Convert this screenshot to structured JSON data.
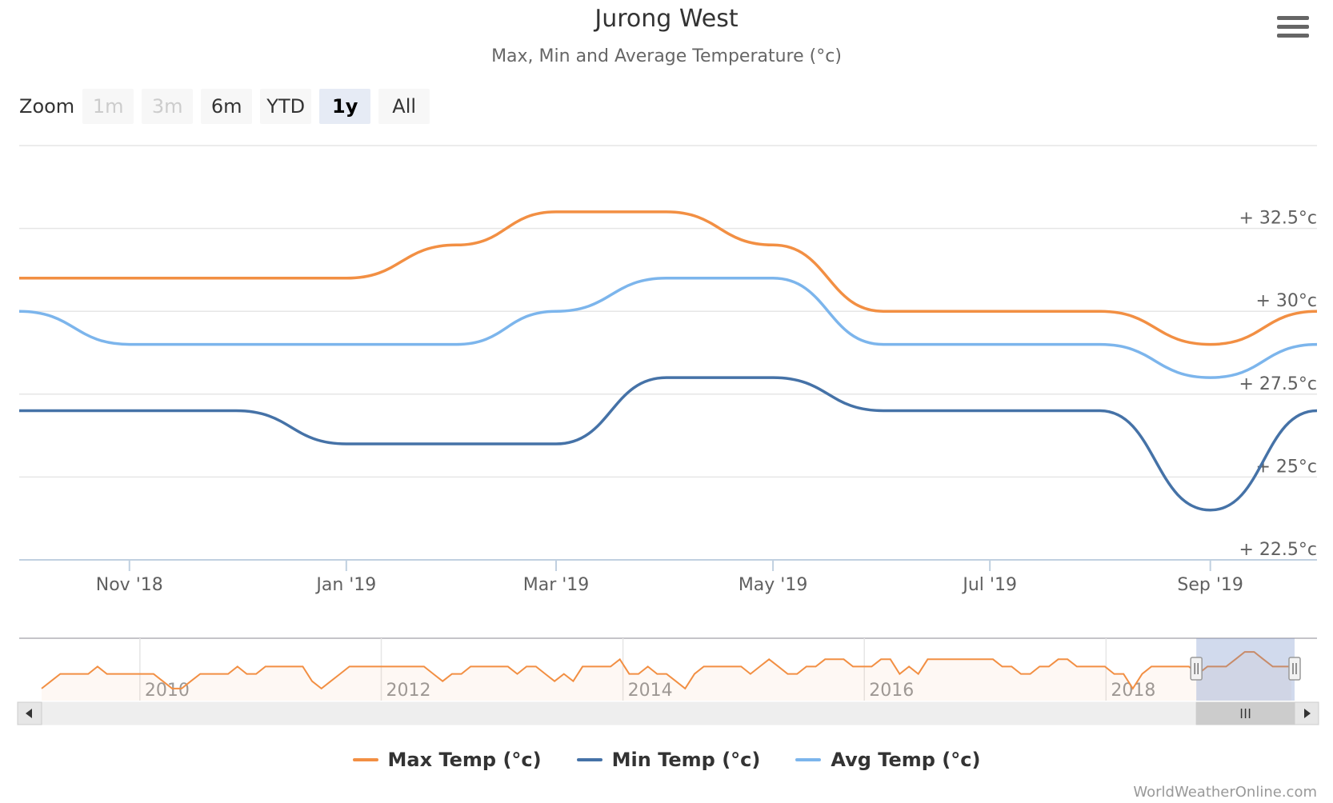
{
  "header": {
    "title": "Jurong West",
    "subtitle": "Max, Min and Average Temperature (°c)",
    "menu_icon": "hamburger-menu-icon"
  },
  "zoom": {
    "label": "Zoom",
    "buttons": [
      {
        "label": "1m",
        "state": "disabled"
      },
      {
        "label": "3m",
        "state": "disabled"
      },
      {
        "label": "6m",
        "state": "normal"
      },
      {
        "label": "YTD",
        "state": "normal"
      },
      {
        "label": "1y",
        "state": "active"
      },
      {
        "label": "All",
        "state": "normal"
      }
    ]
  },
  "chart_data": {
    "type": "line",
    "title": "Jurong West",
    "subtitle": "Max, Min and Average Temperature (°c)",
    "x_range": [
      "2018-10-01",
      "2019-10-01"
    ],
    "x_ticks": [
      {
        "date": "2018-11-01",
        "label": "Nov '18"
      },
      {
        "date": "2019-01-01",
        "label": "Jan '19"
      },
      {
        "date": "2019-03-01",
        "label": "Mar '19"
      },
      {
        "date": "2019-05-01",
        "label": "May '19"
      },
      {
        "date": "2019-07-01",
        "label": "Jul '19"
      },
      {
        "date": "2019-09-01",
        "label": "Sep '19"
      }
    ],
    "y_ticks": [
      {
        "value": 22.5,
        "label": "+ 22.5°c"
      },
      {
        "value": 25,
        "label": "+ 25°c"
      },
      {
        "value": 27.5,
        "label": "+ 27.5°c"
      },
      {
        "value": 30,
        "label": "+ 30°c"
      },
      {
        "value": 32.5,
        "label": "+ 32.5°c"
      }
    ],
    "ylim": [
      22.5,
      35
    ],
    "y_axis_side": "right",
    "grid": true,
    "series": [
      {
        "name": "Max Temp (°c)",
        "color": "#f28f43",
        "points": [
          [
            "2018-10-01",
            31
          ],
          [
            "2018-11-01",
            31
          ],
          [
            "2018-12-01",
            31
          ],
          [
            "2019-01-01",
            31
          ],
          [
            "2019-02-01",
            32
          ],
          [
            "2019-03-01",
            33
          ],
          [
            "2019-04-01",
            33
          ],
          [
            "2019-05-01",
            32
          ],
          [
            "2019-06-01",
            30
          ],
          [
            "2019-07-01",
            30
          ],
          [
            "2019-08-01",
            30
          ],
          [
            "2019-09-01",
            29
          ],
          [
            "2019-10-01",
            30
          ]
        ]
      },
      {
        "name": "Min Temp (°c)",
        "color": "#4572a7",
        "points": [
          [
            "2018-10-01",
            27
          ],
          [
            "2018-11-01",
            27
          ],
          [
            "2018-12-01",
            27
          ],
          [
            "2019-01-01",
            26
          ],
          [
            "2019-02-01",
            26
          ],
          [
            "2019-03-01",
            26
          ],
          [
            "2019-04-01",
            28
          ],
          [
            "2019-05-01",
            28
          ],
          [
            "2019-06-01",
            27
          ],
          [
            "2019-07-01",
            27
          ],
          [
            "2019-08-01",
            27
          ],
          [
            "2019-09-01",
            24
          ],
          [
            "2019-10-01",
            27
          ]
        ]
      },
      {
        "name": "Avg Temp (°c)",
        "color": "#7cb5ec",
        "points": [
          [
            "2018-10-01",
            30
          ],
          [
            "2018-11-01",
            29
          ],
          [
            "2018-12-01",
            29
          ],
          [
            "2019-01-01",
            29
          ],
          [
            "2019-02-01",
            29
          ],
          [
            "2019-03-01",
            30
          ],
          [
            "2019-04-01",
            31
          ],
          [
            "2019-05-01",
            31
          ],
          [
            "2019-06-01",
            29
          ],
          [
            "2019-07-01",
            29
          ],
          [
            "2019-08-01",
            29
          ],
          [
            "2019-09-01",
            28
          ],
          [
            "2019-10-01",
            29
          ]
        ]
      }
    ],
    "navigator": {
      "year_labels": [
        "2010",
        "2012",
        "2014",
        "2016",
        "2018"
      ],
      "range": [
        "2009-01-01",
        "2019-10-01"
      ],
      "selected": [
        "2018-10-01",
        "2019-10-01"
      ],
      "series_name": "Max Temp (°c)",
      "values": [
        26,
        27,
        28,
        28,
        28,
        28,
        29,
        28,
        28,
        28,
        28,
        28,
        28,
        27,
        26,
        26,
        27,
        28,
        28,
        28,
        28,
        29,
        28,
        28,
        29,
        29,
        29,
        29,
        29,
        27,
        26,
        27,
        28,
        29,
        29,
        29,
        29,
        29,
        29,
        29,
        29,
        29,
        28,
        27,
        28,
        28,
        29,
        29,
        29,
        29,
        29,
        28,
        29,
        29,
        28,
        27,
        28,
        27,
        29,
        29,
        29,
        29,
        30,
        28,
        28,
        29,
        28,
        28,
        27,
        26,
        28,
        29,
        29,
        29,
        29,
        29,
        28,
        29,
        30,
        29,
        28,
        28,
        29,
        29,
        30,
        30,
        30,
        29,
        29,
        29,
        30,
        30,
        28,
        29,
        28,
        30,
        30,
        30,
        30,
        30,
        30,
        30,
        30,
        29,
        29,
        28,
        28,
        29,
        29,
        30,
        30,
        29,
        29,
        29,
        29,
        28,
        28,
        26,
        28,
        29,
        29,
        29,
        29,
        29,
        28,
        29,
        29,
        29,
        30,
        31,
        31,
        30,
        29,
        29,
        29
      ]
    }
  },
  "scrollbar": {
    "left_arrow_icon": "scroll-left-arrow-icon",
    "right_arrow_icon": "scroll-right-arrow-icon",
    "grip_icon": "scrollbar-grip-icon"
  },
  "credits": "WorldWeatherOnline.com"
}
